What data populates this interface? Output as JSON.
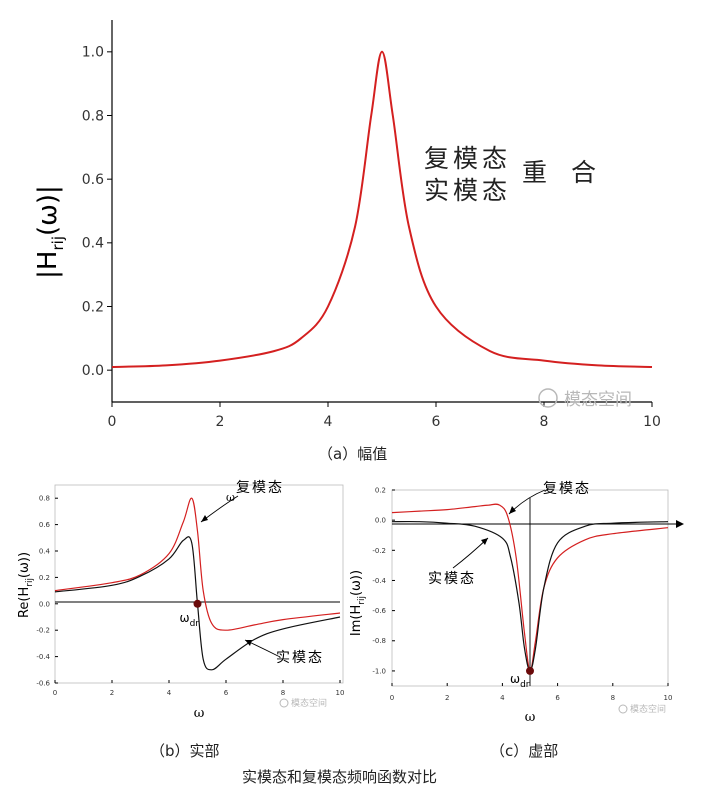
{
  "colors": {
    "complex_mode": "#d42020",
    "real_mode": "#111111",
    "axis": "#000000",
    "watermark": "#b8b8b8"
  },
  "watermark": "模态空间",
  "captions": {
    "a": "（a）幅值",
    "b": "（b）实部",
    "c": "（c）虚部",
    "main": "实模态和复模态频响函数对比"
  },
  "chart_data": [
    {
      "id": "a",
      "type": "line",
      "ylabel_main": "|H",
      "ylabel_sub": "rij",
      "ylabel_tail": "(ω)|",
      "xlim": [
        0,
        10
      ],
      "ylim": [
        -0.1,
        1.1
      ],
      "xticks": [
        "0",
        "2",
        "4",
        "6",
        "8",
        "10"
      ],
      "yticks": [
        "0.0",
        "0.2",
        "0.4",
        "0.6",
        "0.8",
        "1.0"
      ],
      "annotation_line1": "复模态",
      "annotation_line2": "实模态",
      "annotation_suffix": "重 合",
      "series": [
        {
          "x": [
            0,
            1,
            2,
            3,
            3.5,
            4,
            4.5,
            4.8,
            5,
            5.2,
            5.5,
            6,
            7,
            8,
            9,
            10
          ],
          "y": [
            0.01,
            0.015,
            0.03,
            0.06,
            0.1,
            0.2,
            0.45,
            0.8,
            1.0,
            0.8,
            0.45,
            0.2,
            0.06,
            0.03,
            0.015,
            0.01
          ]
        }
      ]
    },
    {
      "id": "b",
      "type": "line",
      "ylabel_main": "Re(H",
      "ylabel_sub": "rij",
      "ylabel_tail": "(ω))",
      "xlabel": "ω",
      "xlim": [
        0,
        10
      ],
      "ylim": [
        -0.6,
        0.9
      ],
      "xticks": [
        "0",
        "2",
        "4",
        "6",
        "8",
        "10"
      ],
      "yticks": [
        "-0.6",
        "-0.4",
        "-0.2",
        "0.0",
        "0.2",
        "0.4",
        "0.6",
        "0.8"
      ],
      "point_label_main": "ω",
      "point_label_sub": "dr",
      "point": [
        5,
        0
      ],
      "series": [
        {
          "name": "复模态",
          "x": [
            0,
            2,
            3,
            4,
            4.5,
            4.8,
            5,
            5.2,
            5.5,
            6,
            7,
            8,
            10
          ],
          "y": [
            0.1,
            0.16,
            0.22,
            0.38,
            0.62,
            0.8,
            0.55,
            0.1,
            -0.15,
            -0.2,
            -0.16,
            -0.12,
            -0.07
          ]
        },
        {
          "name": "实模态",
          "x": [
            0,
            2,
            3,
            4,
            4.5,
            4.8,
            5,
            5.2,
            5.5,
            6,
            7,
            8,
            10
          ],
          "y": [
            0.09,
            0.14,
            0.21,
            0.34,
            0.48,
            0.46,
            0.0,
            -0.42,
            -0.5,
            -0.42,
            -0.27,
            -0.19,
            -0.1
          ]
        }
      ]
    },
    {
      "id": "c",
      "type": "line",
      "ylabel_main": "Im(H",
      "ylabel_sub": "rij",
      "ylabel_tail": "(ω))",
      "xlabel": "ω",
      "xlim": [
        0,
        10
      ],
      "ylim": [
        -1.1,
        0.2
      ],
      "xticks": [
        "0",
        "2",
        "4",
        "6",
        "8",
        "10"
      ],
      "yticks": [
        "-1.0",
        "-0.8",
        "-0.6",
        "-0.4",
        "-0.2",
        "0.0",
        "0.2"
      ],
      "point_label_main": "ω",
      "point_label_sub": "dr",
      "point": [
        5,
        -1.0
      ],
      "series": [
        {
          "name": "复模态",
          "x": [
            0,
            1,
            2,
            3,
            3.5,
            3.9,
            4.2,
            4.5,
            4.8,
            5,
            5.2,
            5.5,
            6,
            7,
            8,
            10
          ],
          "y": [
            0.05,
            0.06,
            0.07,
            0.09,
            0.1,
            0.1,
            0.02,
            -0.25,
            -0.75,
            -1.0,
            -0.8,
            -0.45,
            -0.25,
            -0.13,
            -0.09,
            -0.05
          ]
        },
        {
          "name": "实模态",
          "x": [
            0,
            1,
            2,
            3,
            4,
            4.3,
            4.6,
            4.8,
            5,
            5.2,
            5.5,
            6,
            7,
            8,
            10
          ],
          "y": [
            -0.01,
            -0.01,
            -0.02,
            -0.04,
            -0.12,
            -0.25,
            -0.55,
            -0.85,
            -1.0,
            -0.85,
            -0.45,
            -0.15,
            -0.04,
            -0.02,
            -0.01
          ]
        }
      ]
    }
  ]
}
